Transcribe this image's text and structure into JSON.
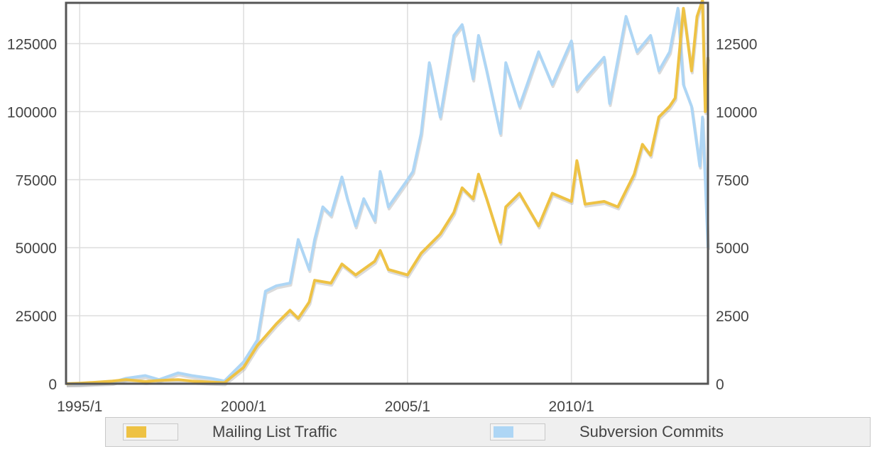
{
  "chart_data": {
    "type": "line",
    "title": "",
    "x_ticks": [
      "1995/1",
      "2000/1",
      "2005/1",
      "2010/1"
    ],
    "x_range": [
      "1994/8",
      "2014/3"
    ],
    "y_left": {
      "ticks": [
        "0",
        "25000",
        "50000",
        "75000",
        "100000",
        "125000"
      ],
      "range": [
        0,
        140000
      ]
    },
    "y_right": {
      "ticks": [
        "0",
        "2500",
        "5000",
        "7500",
        "10000",
        "12500"
      ],
      "range": [
        0,
        14000
      ]
    },
    "grid": true,
    "legend_position": "bottom",
    "series": [
      {
        "name": "Mailing List Traffic",
        "axis": "left",
        "color": "#eec244",
        "points": [
          [
            "1994/8",
            0
          ],
          [
            "1995/1",
            200
          ],
          [
            "1995/6",
            500
          ],
          [
            "1996/1",
            1000
          ],
          [
            "1996/6",
            1500
          ],
          [
            "1997/1",
            800
          ],
          [
            "1997/6",
            1200
          ],
          [
            "1998/1",
            1500
          ],
          [
            "1998/6",
            1000
          ],
          [
            "1999/1",
            600
          ],
          [
            "1999/6",
            400
          ],
          [
            "2000/1",
            6000
          ],
          [
            "2000/6",
            14000
          ],
          [
            "2001/1",
            22000
          ],
          [
            "2001/6",
            27000
          ],
          [
            "2001/9",
            24000
          ],
          [
            "2002/1",
            30000
          ],
          [
            "2002/3",
            38000
          ],
          [
            "2002/9",
            37000
          ],
          [
            "2003/1",
            44000
          ],
          [
            "2003/6",
            40000
          ],
          [
            "2004/1",
            45000
          ],
          [
            "2004/3",
            49000
          ],
          [
            "2004/6",
            42000
          ],
          [
            "2005/1",
            40000
          ],
          [
            "2005/6",
            48000
          ],
          [
            "2006/1",
            55000
          ],
          [
            "2006/6",
            63000
          ],
          [
            "2006/9",
            72000
          ],
          [
            "2007/1",
            68000
          ],
          [
            "2007/3",
            77000
          ],
          [
            "2007/6",
            68000
          ],
          [
            "2007/11",
            52000
          ],
          [
            "2008/1",
            65000
          ],
          [
            "2008/6",
            70000
          ],
          [
            "2009/1",
            58000
          ],
          [
            "2009/6",
            70000
          ],
          [
            "2010/1",
            67000
          ],
          [
            "2010/3",
            82000
          ],
          [
            "2010/6",
            66000
          ],
          [
            "2011/1",
            67000
          ],
          [
            "2011/6",
            65000
          ],
          [
            "2011/12",
            77000
          ],
          [
            "2012/3",
            88000
          ],
          [
            "2012/6",
            84000
          ],
          [
            "2012/9",
            98000
          ],
          [
            "2013/1",
            102000
          ],
          [
            "2013/3",
            105000
          ],
          [
            "2013/6",
            138000
          ],
          [
            "2013/9",
            115000
          ],
          [
            "2013/11",
            135000
          ],
          [
            "2014/1",
            141000
          ],
          [
            "2014/2",
            100000
          ],
          [
            "2014/3",
            120000
          ]
        ]
      },
      {
        "name": "Subversion Commits",
        "axis": "right",
        "color": "#aed6f5",
        "points": [
          [
            "1994/8",
            0
          ],
          [
            "1995/1",
            0
          ],
          [
            "1996/1",
            50
          ],
          [
            "1996/6",
            200
          ],
          [
            "1997/1",
            300
          ],
          [
            "1997/6",
            150
          ],
          [
            "1998/1",
            400
          ],
          [
            "1998/6",
            300
          ],
          [
            "1999/1",
            200
          ],
          [
            "1999/6",
            100
          ],
          [
            "2000/1",
            800
          ],
          [
            "2000/6",
            1600
          ],
          [
            "2000/9",
            3400
          ],
          [
            "2001/1",
            3600
          ],
          [
            "2001/6",
            3700
          ],
          [
            "2001/9",
            5300
          ],
          [
            "2002/1",
            4200
          ],
          [
            "2002/3",
            5300
          ],
          [
            "2002/6",
            6500
          ],
          [
            "2002/9",
            6200
          ],
          [
            "2003/1",
            7600
          ],
          [
            "2003/3",
            6800
          ],
          [
            "2003/6",
            5800
          ],
          [
            "2003/9",
            6800
          ],
          [
            "2004/1",
            6000
          ],
          [
            "2004/3",
            7800
          ],
          [
            "2004/6",
            6500
          ],
          [
            "2005/1",
            7500
          ],
          [
            "2005/3",
            7800
          ],
          [
            "2005/6",
            9200
          ],
          [
            "2005/9",
            11800
          ],
          [
            "2006/1",
            9800
          ],
          [
            "2006/6",
            12800
          ],
          [
            "2006/9",
            13200
          ],
          [
            "2007/1",
            11200
          ],
          [
            "2007/3",
            12800
          ],
          [
            "2007/6",
            11500
          ],
          [
            "2007/11",
            9200
          ],
          [
            "2008/1",
            11800
          ],
          [
            "2008/6",
            10200
          ],
          [
            "2009/1",
            12200
          ],
          [
            "2009/6",
            11000
          ],
          [
            "2010/1",
            12600
          ],
          [
            "2010/3",
            10800
          ],
          [
            "2010/6",
            11200
          ],
          [
            "2011/1",
            12000
          ],
          [
            "2011/3",
            10300
          ],
          [
            "2011/9",
            13500
          ],
          [
            "2012/1",
            12200
          ],
          [
            "2012/6",
            12800
          ],
          [
            "2012/9",
            11500
          ],
          [
            "2013/1",
            12200
          ],
          [
            "2013/4",
            13800
          ],
          [
            "2013/6",
            11000
          ],
          [
            "2013/9",
            10200
          ],
          [
            "2013/12",
            8000
          ],
          [
            "2014/1",
            9800
          ],
          [
            "2014/2",
            7500
          ],
          [
            "2014/3",
            5000
          ]
        ]
      }
    ]
  }
}
